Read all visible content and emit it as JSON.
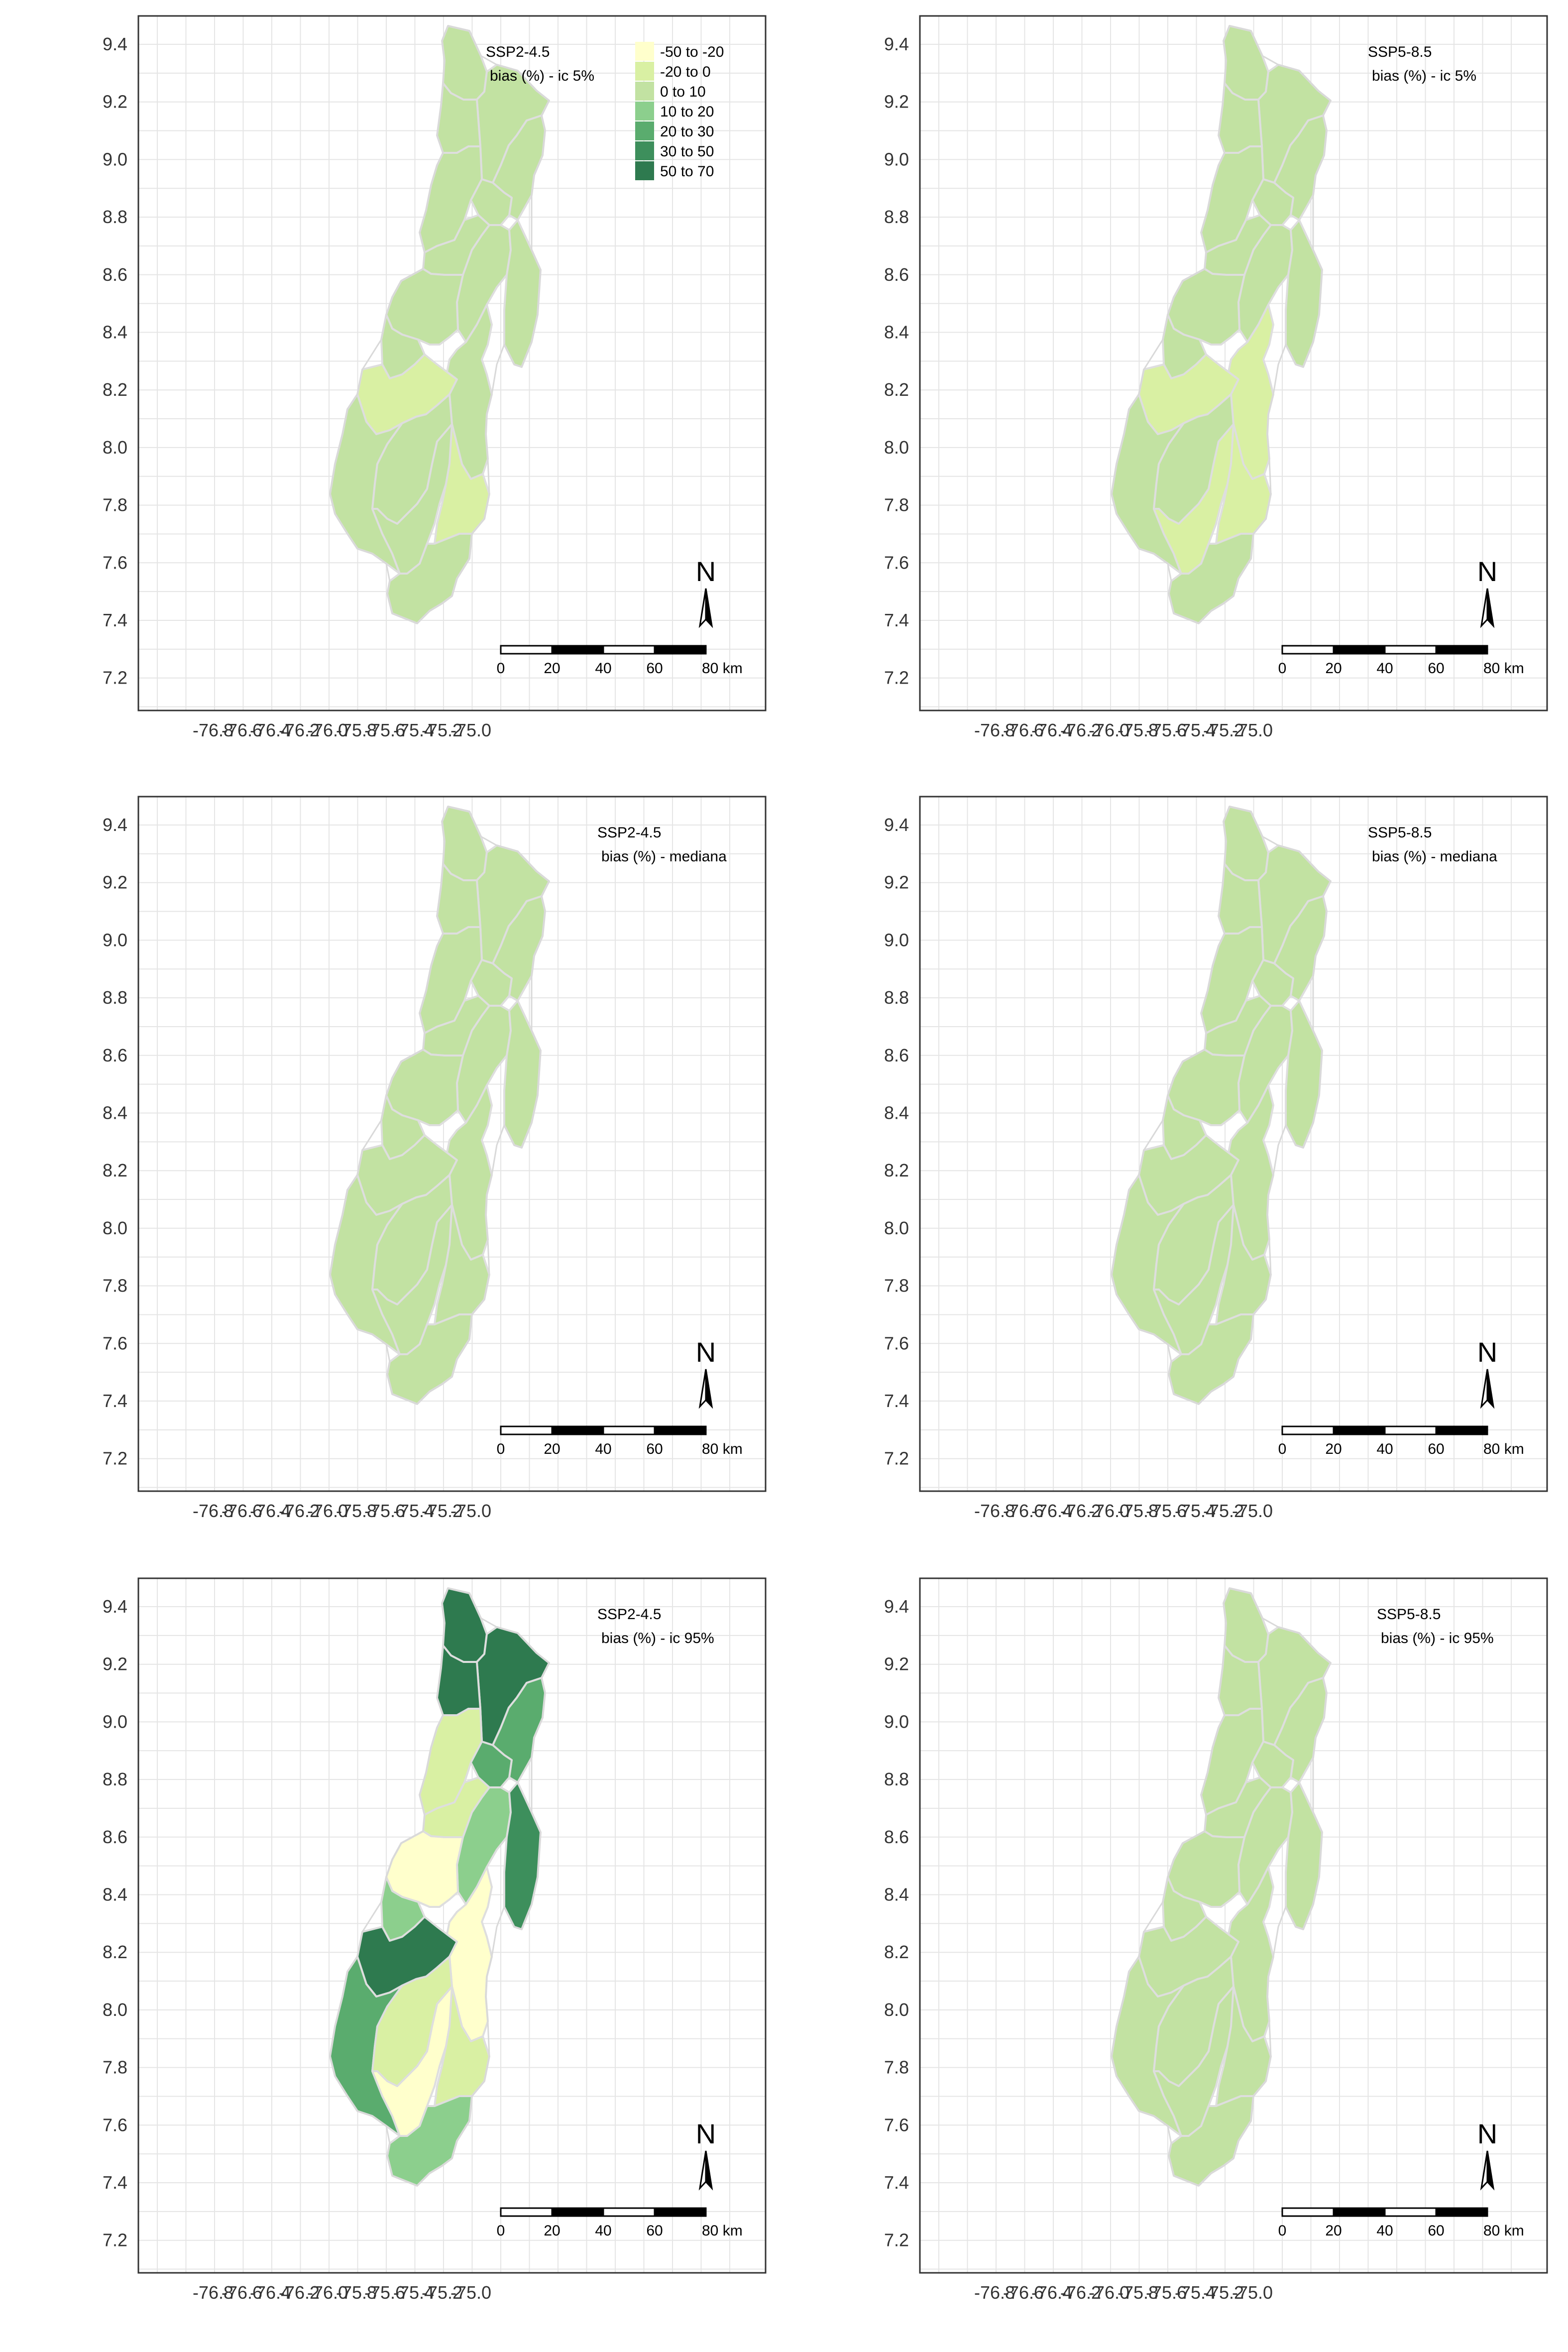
{
  "x_ticks": [
    "-76.8",
    "-76.6",
    "-76.4",
    "-76.2",
    "-76.0",
    "-75.8",
    "-75.6",
    "-75.4",
    "-75.2",
    "-75.0"
  ],
  "y_ticks": [
    "9.4",
    "9.2",
    "9.0",
    "8.8",
    "8.6",
    "8.4",
    "8.2",
    "8.0",
    "7.8",
    "7.6",
    "7.4",
    "7.2"
  ],
  "legend": {
    "entries": [
      {
        "label": "-50 to -20",
        "color": "#ffffcc"
      },
      {
        "label": "-20 to 0",
        "color": "#d9f0a3"
      },
      {
        "label": "0 to 10",
        "color": "#c2e2a2"
      },
      {
        "label": "10 to 20",
        "color": "#8ccf8d"
      },
      {
        "label": "20 to 30",
        "color": "#5aac6e"
      },
      {
        "label": "30 to 50",
        "color": "#3d8f5c"
      },
      {
        "label": "50 to 70",
        "color": "#2e7a4f"
      }
    ]
  },
  "scalebar": {
    "labels": [
      "0",
      "20",
      "40",
      "60",
      "80 km"
    ]
  },
  "north_label": "N",
  "panels": [
    {
      "scenario": "SSP2-4.5",
      "stat": "bias (%) - ic 5%",
      "show_legend": true,
      "fills": {
        "A": "#c2e2a2",
        "B": "#c2e2a2",
        "C": "#c2e2a2",
        "D": "#c2e2a2",
        "E": "#c2e2a2",
        "F": "#c2e2a2",
        "G": "#c2e2a2",
        "H": "#c2e2a2",
        "I": "#c2e2a2",
        "J": "#c2e2a2",
        "K": "#c2e2a2",
        "L": "#d9f0a3",
        "M": "#c2e2a2",
        "N": "#c2e2a2",
        "O": "#c2e2a2",
        "P": "#c2e2a2",
        "Q": "#d9f0a3",
        "R": "#c2e2a2"
      }
    },
    {
      "scenario": "SSP5-8.5",
      "stat": "bias (%) - ic 5%",
      "show_legend": false,
      "fills": {
        "A": "#c2e2a2",
        "B": "#c2e2a2",
        "C": "#c2e2a2",
        "D": "#c2e2a2",
        "E": "#c2e2a2",
        "F": "#c2e2a2",
        "G": "#c2e2a2",
        "H": "#c2e2a2",
        "I": "#c2e2a2",
        "J": "#c2e2a2",
        "K": "#c2e2a2",
        "L": "#d9f0a3",
        "M": "#d9f0a3",
        "N": "#c2e2a2",
        "O": "#c2e2a2",
        "P": "#d9f0a3",
        "Q": "#d9f0a3",
        "R": "#c2e2a2"
      }
    },
    {
      "scenario": "SSP2-4.5",
      "stat": "bias (%) - mediana",
      "show_legend": false,
      "fills": {
        "A": "#c2e2a2",
        "B": "#c2e2a2",
        "C": "#c2e2a2",
        "D": "#c2e2a2",
        "E": "#c2e2a2",
        "F": "#c2e2a2",
        "G": "#c2e2a2",
        "H": "#c2e2a2",
        "I": "#c2e2a2",
        "J": "#c2e2a2",
        "K": "#c2e2a2",
        "L": "#c2e2a2",
        "M": "#c2e2a2",
        "N": "#c2e2a2",
        "O": "#c2e2a2",
        "P": "#c2e2a2",
        "Q": "#c2e2a2",
        "R": "#c2e2a2"
      }
    },
    {
      "scenario": "SSP5-8.5",
      "stat": "bias (%) - mediana",
      "show_legend": false,
      "fills": {
        "A": "#c2e2a2",
        "B": "#c2e2a2",
        "C": "#c2e2a2",
        "D": "#c2e2a2",
        "E": "#c2e2a2",
        "F": "#c2e2a2",
        "G": "#c2e2a2",
        "H": "#c2e2a2",
        "I": "#c2e2a2",
        "J": "#c2e2a2",
        "K": "#c2e2a2",
        "L": "#c2e2a2",
        "M": "#c2e2a2",
        "N": "#c2e2a2",
        "O": "#c2e2a2",
        "P": "#c2e2a2",
        "Q": "#c2e2a2",
        "R": "#c2e2a2"
      }
    },
    {
      "scenario": "SSP2-4.5",
      "stat": "bias (%) - ic 95%",
      "show_legend": false,
      "fills": {
        "A": "#2e7a4f",
        "B": "#2e7a4f",
        "C": "#2e7a4f",
        "D": "#5aac6e",
        "E": "#d9f0a3",
        "F": "#5aac6e",
        "G": "#8ccf8d",
        "H": "#3d8f5c",
        "I": "#d9f0a3",
        "J": "#ffffcc",
        "K": "#8ccf8d",
        "L": "#2e7a4f",
        "M": "#ffffcc",
        "N": "#5aac6e",
        "O": "#d9f0a3",
        "P": "#ffffcc",
        "Q": "#d9f0a3",
        "R": "#8ccf8d"
      }
    },
    {
      "scenario": "SSP5-8.5",
      "stat": "bias (%) - ic 95%",
      "show_legend": false,
      "fills": {
        "A": "#c2e2a2",
        "B": "#c2e2a2",
        "C": "#c2e2a2",
        "D": "#c2e2a2",
        "E": "#c2e2a2",
        "F": "#c2e2a2",
        "G": "#c2e2a2",
        "H": "#c2e2a2",
        "I": "#c2e2a2",
        "J": "#c2e2a2",
        "K": "#c2e2a2",
        "L": "#c2e2a2",
        "M": "#c2e2a2",
        "N": "#c2e2a2",
        "O": "#c2e2a2",
        "P": "#c2e2a2",
        "Q": "#c2e2a2",
        "R": "#c2e2a2"
      }
    }
  ]
}
